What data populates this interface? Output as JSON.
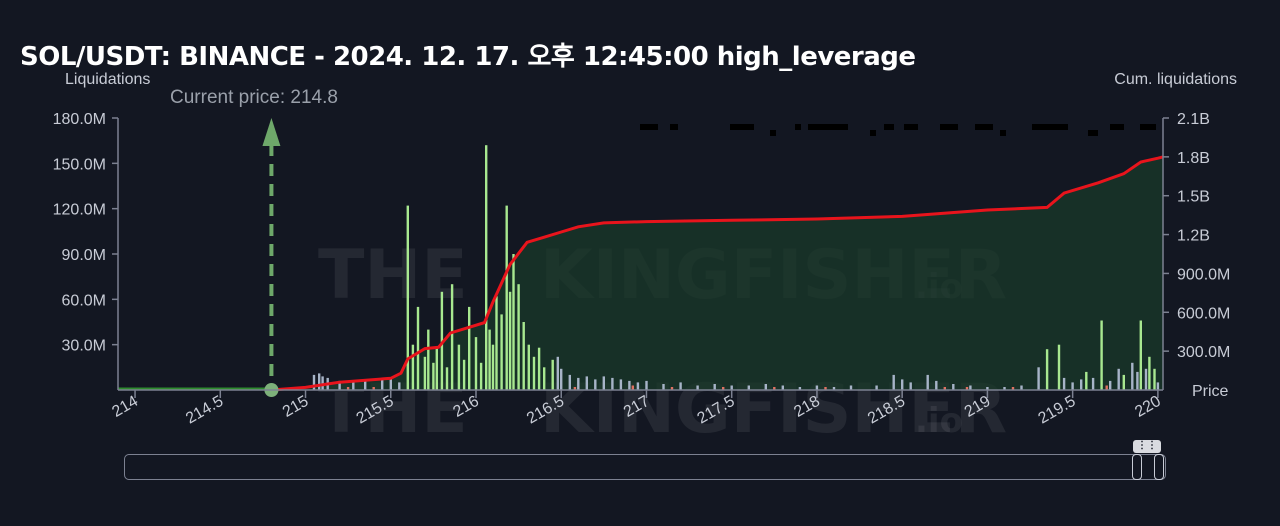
{
  "title": "SOL/USDT: BINANCE - 2024. 12. 17. 오후 12:45:00 high_leverage",
  "watermark": {
    "left": "THE",
    "right": "KINGFISHER",
    "suffix": ".io"
  },
  "colors": {
    "background": "#131722",
    "cum_line": "#e8141c",
    "area_fill": "#1a3a2a",
    "bar_green": "#a8e890",
    "bar_gray": "#a7b4c8",
    "bar_red": "#e07060",
    "current_price": "#6ea86a",
    "left_line": "#2e8b2e"
  },
  "chart_data": {
    "type": "bar",
    "xlabel": "Price",
    "ylabel": "Liquidations",
    "y2label": "Cum. liquidations",
    "xlim": [
      213.9,
      220.03
    ],
    "ylim": [
      0,
      180000000
    ],
    "y2lim": [
      0,
      2100000000
    ],
    "x_ticks": [
      "214",
      "214.5",
      "215",
      "215.5",
      "216",
      "216.5",
      "217",
      "217.5",
      "218",
      "218.5",
      "219",
      "219.5",
      "220"
    ],
    "y_ticks": [
      "180.0M",
      "150.0M",
      "120.0M",
      "90.0M",
      "60.0M",
      "30.0M"
    ],
    "y2_ticks": [
      "2.1B",
      "1.8B",
      "1.5B",
      "1.2B",
      "900.0M",
      "600.0M",
      "300.0M"
    ],
    "current_price": {
      "label": "Current price: 214.8",
      "value": 214.8
    },
    "bars_green": [
      [
        215.6,
        122000000
      ],
      [
        215.63,
        30000000
      ],
      [
        215.66,
        55000000
      ],
      [
        215.7,
        22000000
      ],
      [
        215.72,
        40000000
      ],
      [
        215.75,
        18000000
      ],
      [
        215.77,
        28000000
      ],
      [
        215.8,
        65000000
      ],
      [
        215.83,
        15000000
      ],
      [
        215.86,
        70000000
      ],
      [
        215.9,
        30000000
      ],
      [
        215.93,
        20000000
      ],
      [
        215.96,
        55000000
      ],
      [
        216.0,
        35000000
      ],
      [
        216.03,
        18000000
      ],
      [
        216.06,
        162000000
      ],
      [
        216.08,
        40000000
      ],
      [
        216.1,
        30000000
      ],
      [
        216.12,
        62000000
      ],
      [
        216.15,
        50000000
      ],
      [
        216.18,
        122000000
      ],
      [
        216.2,
        65000000
      ],
      [
        216.22,
        90000000
      ],
      [
        216.25,
        70000000
      ],
      [
        216.28,
        45000000
      ],
      [
        216.31,
        30000000
      ],
      [
        216.34,
        22000000
      ],
      [
        216.37,
        28000000
      ],
      [
        216.4,
        15000000
      ],
      [
        216.45,
        20000000
      ],
      [
        219.35,
        27000000
      ],
      [
        219.42,
        30000000
      ],
      [
        219.58,
        12000000
      ],
      [
        219.67,
        46000000
      ],
      [
        219.8,
        10000000
      ],
      [
        219.9,
        46000000
      ],
      [
        219.95,
        22000000
      ],
      [
        219.98,
        14000000
      ]
    ],
    "bars_gray": [
      [
        215.05,
        10000000
      ],
      [
        215.08,
        11000000
      ],
      [
        215.1,
        9000000
      ],
      [
        215.13,
        8000000
      ],
      [
        215.2,
        6000000
      ],
      [
        215.28,
        5000000
      ],
      [
        215.35,
        6000000
      ],
      [
        215.45,
        7000000
      ],
      [
        215.5,
        8000000
      ],
      [
        215.55,
        5000000
      ],
      [
        216.48,
        22000000
      ],
      [
        216.5,
        14000000
      ],
      [
        216.55,
        10000000
      ],
      [
        216.6,
        8000000
      ],
      [
        216.65,
        9000000
      ],
      [
        216.7,
        7000000
      ],
      [
        216.75,
        9000000
      ],
      [
        216.8,
        8000000
      ],
      [
        216.85,
        7000000
      ],
      [
        216.9,
        6000000
      ],
      [
        216.95,
        5000000
      ],
      [
        217.0,
        6000000
      ],
      [
        217.1,
        4000000
      ],
      [
        217.2,
        5000000
      ],
      [
        217.3,
        3000000
      ],
      [
        217.4,
        4000000
      ],
      [
        217.5,
        3000000
      ],
      [
        217.6,
        3000000
      ],
      [
        217.7,
        4000000
      ],
      [
        217.8,
        3000000
      ],
      [
        217.9,
        2000000
      ],
      [
        218.0,
        3000000
      ],
      [
        218.1,
        2000000
      ],
      [
        218.2,
        3000000
      ],
      [
        218.35,
        3000000
      ],
      [
        218.45,
        10000000
      ],
      [
        218.5,
        7000000
      ],
      [
        218.55,
        5000000
      ],
      [
        218.65,
        10000000
      ],
      [
        218.7,
        6000000
      ],
      [
        218.8,
        4000000
      ],
      [
        218.9,
        3000000
      ],
      [
        219.0,
        2000000
      ],
      [
        219.1,
        2000000
      ],
      [
        219.2,
        3000000
      ],
      [
        219.3,
        15000000
      ],
      [
        219.45,
        8000000
      ],
      [
        219.5,
        5000000
      ],
      [
        219.55,
        7000000
      ],
      [
        219.62,
        8000000
      ],
      [
        219.72,
        6000000
      ],
      [
        219.77,
        14000000
      ],
      [
        219.85,
        18000000
      ],
      [
        219.88,
        12000000
      ],
      [
        219.93,
        14000000
      ],
      [
        220.0,
        5000000
      ]
    ],
    "bars_red": [
      [
        215.25,
        2000000
      ],
      [
        215.4,
        2000000
      ],
      [
        216.58,
        2000000
      ],
      [
        216.92,
        3000000
      ],
      [
        217.15,
        2000000
      ],
      [
        217.45,
        2000000
      ],
      [
        217.75,
        2000000
      ],
      [
        218.05,
        2000000
      ],
      [
        218.75,
        2000000
      ],
      [
        218.88,
        2000000
      ],
      [
        219.15,
        2000000
      ],
      [
        219.7,
        3000000
      ]
    ],
    "cumulative": [
      [
        214.8,
        0
      ],
      [
        215.0,
        20000000
      ],
      [
        215.2,
        60000000
      ],
      [
        215.5,
        90000000
      ],
      [
        215.56,
        130000000
      ],
      [
        215.6,
        240000000
      ],
      [
        215.7,
        320000000
      ],
      [
        215.78,
        330000000
      ],
      [
        215.85,
        440000000
      ],
      [
        215.95,
        480000000
      ],
      [
        216.05,
        520000000
      ],
      [
        216.1,
        680000000
      ],
      [
        216.2,
        970000000
      ],
      [
        216.3,
        1140000000
      ],
      [
        216.4,
        1180000000
      ],
      [
        216.5,
        1220000000
      ],
      [
        216.6,
        1260000000
      ],
      [
        216.75,
        1290000000
      ],
      [
        217.0,
        1300000000
      ],
      [
        217.5,
        1310000000
      ],
      [
        218.0,
        1320000000
      ],
      [
        218.5,
        1340000000
      ],
      [
        219.0,
        1390000000
      ],
      [
        219.35,
        1410000000
      ],
      [
        219.45,
        1520000000
      ],
      [
        219.65,
        1600000000
      ],
      [
        219.8,
        1670000000
      ],
      [
        219.9,
        1760000000
      ],
      [
        220.0,
        1790000000
      ],
      [
        220.03,
        1800000000
      ]
    ],
    "legend": "none",
    "grid": false
  }
}
